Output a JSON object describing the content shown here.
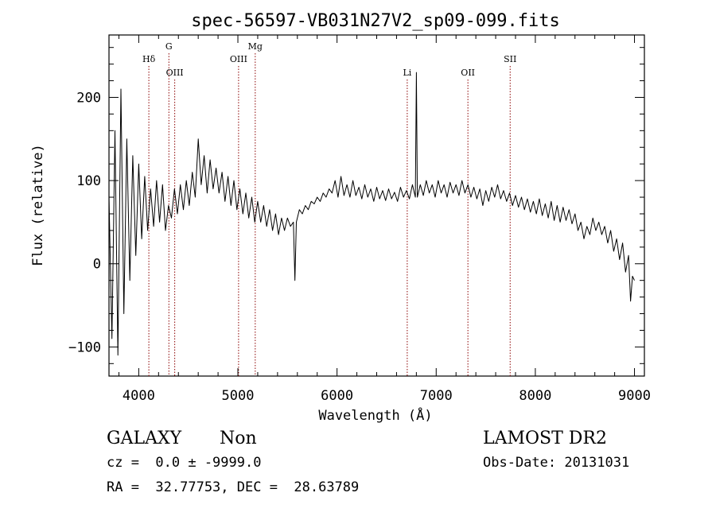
{
  "chart_data": {
    "type": "line",
    "title": "spec-56597-VB031N27V2_sp09-099.fits",
    "xlabel": "Wavelength (Å)",
    "ylabel": "Flux (relative)",
    "xlim": [
      3700,
      9100
    ],
    "ylim": [
      -135,
      275
    ],
    "x_ticks": [
      4000,
      5000,
      6000,
      7000,
      8000,
      9000
    ],
    "x_tick_labels": [
      "4000",
      "5000",
      "6000",
      "7000",
      "8000",
      "9000"
    ],
    "y_ticks": [
      -100,
      0,
      100,
      200
    ],
    "y_tick_labels": [
      "−100",
      "0",
      "100",
      "200"
    ],
    "line_color": "#000000",
    "marker_color": "#8b0000",
    "lines": [
      {
        "label": "Hδ",
        "wavelength": 4102,
        "row": 0
      },
      {
        "label": "G",
        "wavelength": 4304,
        "row": -1
      },
      {
        "label": "OIII",
        "wavelength": 4363,
        "row": 1
      },
      {
        "label": "OIII",
        "wavelength": 5007,
        "row": 0
      },
      {
        "label": "Mg",
        "wavelength": 5175,
        "row": -1
      },
      {
        "label": "Li",
        "wavelength": 6708,
        "row": 1
      },
      {
        "label": "OII",
        "wavelength": 7320,
        "row": 1
      },
      {
        "label": "SII",
        "wavelength": 7746,
        "row": 0
      }
    ],
    "series": [
      {
        "values": [
          [
            3700,
            80
          ],
          [
            3730,
            -90
          ],
          [
            3760,
            160
          ],
          [
            3790,
            -110
          ],
          [
            3820,
            210
          ],
          [
            3850,
            -60
          ],
          [
            3880,
            150
          ],
          [
            3910,
            -20
          ],
          [
            3940,
            130
          ],
          [
            3970,
            10
          ],
          [
            4000,
            120
          ],
          [
            4030,
            30
          ],
          [
            4060,
            105
          ],
          [
            4090,
            40
          ],
          [
            4120,
            90
          ],
          [
            4150,
            45
          ],
          [
            4180,
            100
          ],
          [
            4210,
            50
          ],
          [
            4240,
            95
          ],
          [
            4270,
            40
          ],
          [
            4300,
            70
          ],
          [
            4330,
            55
          ],
          [
            4360,
            90
          ],
          [
            4390,
            60
          ],
          [
            4420,
            95
          ],
          [
            4450,
            65
          ],
          [
            4480,
            100
          ],
          [
            4510,
            70
          ],
          [
            4540,
            110
          ],
          [
            4570,
            80
          ],
          [
            4600,
            150
          ],
          [
            4630,
            95
          ],
          [
            4660,
            130
          ],
          [
            4690,
            85
          ],
          [
            4720,
            125
          ],
          [
            4750,
            90
          ],
          [
            4780,
            115
          ],
          [
            4810,
            85
          ],
          [
            4840,
            110
          ],
          [
            4870,
            75
          ],
          [
            4900,
            105
          ],
          [
            4930,
            70
          ],
          [
            4960,
            100
          ],
          [
            4990,
            65
          ],
          [
            5020,
            90
          ],
          [
            5050,
            60
          ],
          [
            5080,
            85
          ],
          [
            5110,
            55
          ],
          [
            5140,
            80
          ],
          [
            5170,
            50
          ],
          [
            5200,
            75
          ],
          [
            5230,
            50
          ],
          [
            5260,
            70
          ],
          [
            5290,
            45
          ],
          [
            5320,
            65
          ],
          [
            5350,
            40
          ],
          [
            5380,
            60
          ],
          [
            5410,
            35
          ],
          [
            5440,
            55
          ],
          [
            5470,
            40
          ],
          [
            5500,
            55
          ],
          [
            5530,
            45
          ],
          [
            5560,
            50
          ],
          [
            5575,
            -20
          ],
          [
            5590,
            50
          ],
          [
            5620,
            65
          ],
          [
            5650,
            60
          ],
          [
            5680,
            70
          ],
          [
            5710,
            65
          ],
          [
            5740,
            75
          ],
          [
            5770,
            72
          ],
          [
            5800,
            80
          ],
          [
            5830,
            75
          ],
          [
            5860,
            85
          ],
          [
            5890,
            80
          ],
          [
            5920,
            90
          ],
          [
            5950,
            85
          ],
          [
            5980,
            100
          ],
          [
            6010,
            80
          ],
          [
            6040,
            105
          ],
          [
            6070,
            82
          ],
          [
            6100,
            95
          ],
          [
            6130,
            80
          ],
          [
            6160,
            100
          ],
          [
            6190,
            82
          ],
          [
            6220,
            92
          ],
          [
            6250,
            78
          ],
          [
            6280,
            95
          ],
          [
            6310,
            80
          ],
          [
            6340,
            90
          ],
          [
            6370,
            75
          ],
          [
            6400,
            92
          ],
          [
            6430,
            78
          ],
          [
            6460,
            88
          ],
          [
            6490,
            76
          ],
          [
            6520,
            90
          ],
          [
            6550,
            78
          ],
          [
            6580,
            86
          ],
          [
            6610,
            75
          ],
          [
            6640,
            92
          ],
          [
            6670,
            80
          ],
          [
            6700,
            88
          ],
          [
            6730,
            78
          ],
          [
            6760,
            95
          ],
          [
            6790,
            80
          ],
          [
            6800,
            230
          ],
          [
            6810,
            80
          ],
          [
            6840,
            95
          ],
          [
            6870,
            82
          ],
          [
            6900,
            100
          ],
          [
            6930,
            85
          ],
          [
            6960,
            95
          ],
          [
            6990,
            80
          ],
          [
            7020,
            100
          ],
          [
            7050,
            85
          ],
          [
            7080,
            95
          ],
          [
            7110,
            80
          ],
          [
            7140,
            98
          ],
          [
            7170,
            85
          ],
          [
            7200,
            95
          ],
          [
            7230,
            82
          ],
          [
            7260,
            100
          ],
          [
            7290,
            85
          ],
          [
            7320,
            95
          ],
          [
            7350,
            80
          ],
          [
            7380,
            92
          ],
          [
            7410,
            78
          ],
          [
            7440,
            90
          ],
          [
            7470,
            70
          ],
          [
            7500,
            88
          ],
          [
            7530,
            75
          ],
          [
            7560,
            92
          ],
          [
            7590,
            80
          ],
          [
            7620,
            95
          ],
          [
            7650,
            78
          ],
          [
            7680,
            88
          ],
          [
            7710,
            75
          ],
          [
            7740,
            85
          ],
          [
            7770,
            70
          ],
          [
            7800,
            82
          ],
          [
            7830,
            68
          ],
          [
            7860,
            80
          ],
          [
            7890,
            65
          ],
          [
            7920,
            78
          ],
          [
            7950,
            62
          ],
          [
            7980,
            75
          ],
          [
            8010,
            60
          ],
          [
            8040,
            78
          ],
          [
            8070,
            58
          ],
          [
            8100,
            72
          ],
          [
            8130,
            55
          ],
          [
            8160,
            75
          ],
          [
            8190,
            52
          ],
          [
            8220,
            70
          ],
          [
            8250,
            50
          ],
          [
            8280,
            68
          ],
          [
            8310,
            52
          ],
          [
            8340,
            65
          ],
          [
            8370,
            48
          ],
          [
            8400,
            60
          ],
          [
            8430,
            40
          ],
          [
            8460,
            50
          ],
          [
            8490,
            30
          ],
          [
            8520,
            45
          ],
          [
            8550,
            35
          ],
          [
            8580,
            55
          ],
          [
            8610,
            40
          ],
          [
            8640,
            50
          ],
          [
            8670,
            35
          ],
          [
            8700,
            45
          ],
          [
            8730,
            25
          ],
          [
            8760,
            40
          ],
          [
            8790,
            15
          ],
          [
            8820,
            30
          ],
          [
            8850,
            5
          ],
          [
            8880,
            25
          ],
          [
            8910,
            -10
          ],
          [
            8940,
            10
          ],
          [
            8960,
            -45
          ],
          [
            8980,
            -15
          ],
          [
            9000,
            -20
          ]
        ]
      }
    ]
  },
  "info": {
    "object_class": "GALAXY",
    "subclass": "Non",
    "survey": "LAMOST DR2",
    "redshift_line": "cz =  0.0 ± -9999.0",
    "obs_date_line": "Obs-Date: 20131031",
    "coords_line": "RA =  32.77753, DEC =  28.63789"
  }
}
